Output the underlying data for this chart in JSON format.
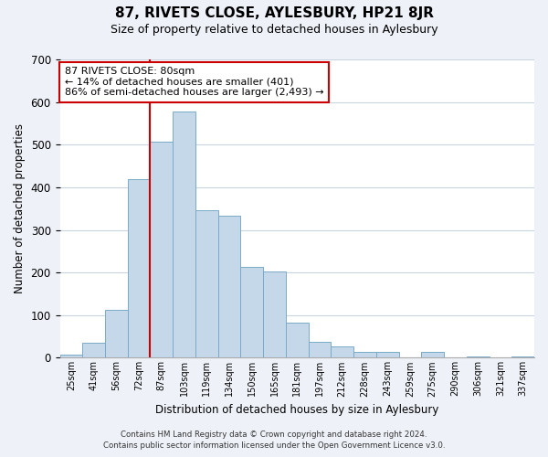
{
  "title": "87, RIVETS CLOSE, AYLESBURY, HP21 8JR",
  "subtitle": "Size of property relative to detached houses in Aylesbury",
  "xlabel": "Distribution of detached houses by size in Aylesbury",
  "ylabel": "Number of detached properties",
  "categories": [
    "25sqm",
    "41sqm",
    "56sqm",
    "72sqm",
    "87sqm",
    "103sqm",
    "119sqm",
    "134sqm",
    "150sqm",
    "165sqm",
    "181sqm",
    "197sqm",
    "212sqm",
    "228sqm",
    "243sqm",
    "259sqm",
    "275sqm",
    "290sqm",
    "306sqm",
    "321sqm",
    "337sqm"
  ],
  "values": [
    8,
    35,
    112,
    418,
    507,
    578,
    346,
    333,
    213,
    202,
    83,
    37,
    27,
    13,
    13,
    0,
    13,
    0,
    2,
    0,
    2
  ],
  "bar_color": "#c5d8ea",
  "bar_edge_color": "#7aaac8",
  "vline_x_index": 4,
  "vline_color": "#cc0000",
  "annotation_line1": "87 RIVETS CLOSE: 80sqm",
  "annotation_line2": "← 14% of detached houses are smaller (401)",
  "annotation_line3": "86% of semi-detached houses are larger (2,493) →",
  "annotation_box_color": "white",
  "annotation_box_edge": "#cc0000",
  "ylim": [
    0,
    700
  ],
  "yticks": [
    0,
    100,
    200,
    300,
    400,
    500,
    600,
    700
  ],
  "footer_line1": "Contains HM Land Registry data © Crown copyright and database right 2024.",
  "footer_line2": "Contains public sector information licensed under the Open Government Licence v3.0.",
  "bg_color": "#eef2f8",
  "plot_bg_color": "white",
  "grid_color": "#c8d4e0"
}
